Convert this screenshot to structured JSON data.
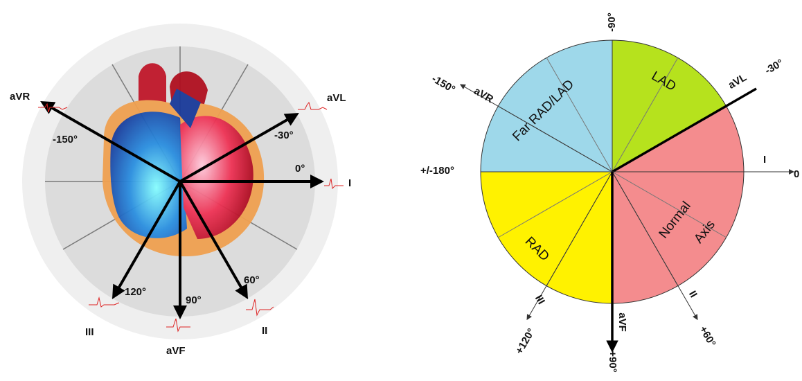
{
  "left": {
    "leads": {
      "avr": "aVR",
      "avl": "aVL",
      "i": "I",
      "iii": "III",
      "avf": "aVF",
      "ii": "II"
    },
    "angles": {
      "avr": "-150°",
      "avl": "-30°",
      "i": "0°",
      "iii": "120°",
      "avf": "90°",
      "ii": "60°"
    }
  },
  "right": {
    "top_angle": "-90°",
    "regions": {
      "lad": "LAD",
      "far": "Far RAD/LAD",
      "rad": "RAD",
      "normal_1": "Normal",
      "normal_2": "Axis"
    },
    "leads": {
      "avl": "aVL",
      "avr": "aVR",
      "i": "I",
      "iii": "III",
      "ii": "II",
      "avf": "aVF"
    },
    "angles": {
      "avl": "-30°",
      "avr": "-150°",
      "i": "0",
      "iii": "+120°",
      "avf": "+90°",
      "ii": "+60°",
      "left": "+/-180°"
    }
  }
}
